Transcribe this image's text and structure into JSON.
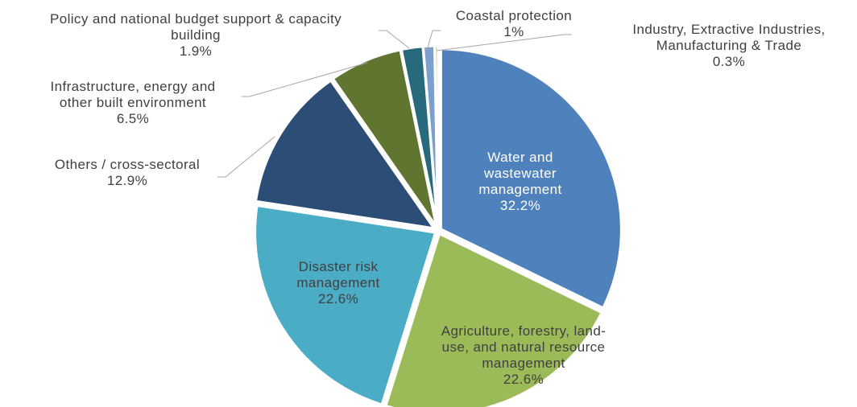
{
  "chart_data": {
    "type": "pie",
    "title": "",
    "start_angle_deg": 0,
    "direction": "clockwise",
    "slices": [
      {
        "label_lines": [
          "Water and",
          "wastewater",
          "management"
        ],
        "value": 32.2,
        "value_text": "32.2%",
        "color": "#4f81bd"
      },
      {
        "label_lines": [
          "Agriculture, forestry, land-",
          "use, and natural resource",
          "management"
        ],
        "value": 22.6,
        "value_text": "22.6%",
        "color": "#9bbb59"
      },
      {
        "label_lines": [
          "Disaster risk",
          "management"
        ],
        "value": 22.6,
        "value_text": "22.6%",
        "color": "#4bacc6"
      },
      {
        "label_lines": [
          "Others / cross-sectoral"
        ],
        "value": 12.9,
        "value_text": "12.9%",
        "color": "#2c4d75"
      },
      {
        "label_lines": [
          "Infrastructure, energy and",
          "other built environment"
        ],
        "value": 6.5,
        "value_text": "6.5%",
        "color": "#5f7530"
      },
      {
        "label_lines": [
          "Policy and national budget support & capacity",
          "building"
        ],
        "value": 1.9,
        "value_text": "1.9%",
        "color": "#276a7c"
      },
      {
        "label_lines": [
          "Coastal protection"
        ],
        "value": 1.0,
        "value_text": "1%",
        "color": "#7ba0cd"
      },
      {
        "label_lines": [
          "Industry, Extractive Industries,",
          "Manufacturing & Trade"
        ],
        "value": 0.3,
        "value_text": "0.3%",
        "color": "#c3d69b"
      }
    ]
  }
}
